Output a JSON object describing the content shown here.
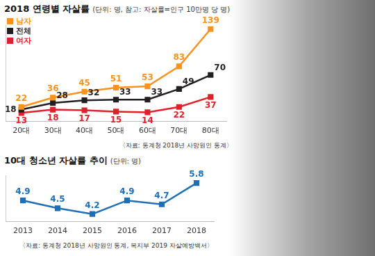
{
  "chart_data": [
    {
      "type": "line",
      "title": "2018 연령별 자살률",
      "subtitle": "(단위: 명, 참고: 자살률=인구 10만명 당 명)",
      "source": "〈자료: 통계청 2018년 사망원인 통계〉",
      "categories": [
        "20대",
        "30대",
        "40대",
        "50대",
        "60대",
        "70대",
        "80대"
      ],
      "series": [
        {
          "name": "남자",
          "color": "#f7931e",
          "values": [
            22,
            36,
            45,
            51,
            53,
            83,
            139
          ]
        },
        {
          "name": "전체",
          "color": "#231f20",
          "values": [
            18,
            28,
            32,
            33,
            33,
            49,
            70
          ]
        },
        {
          "name": "여자",
          "color": "#e0202a",
          "values": [
            13,
            18,
            17,
            15,
            14,
            22,
            37
          ]
        }
      ],
      "ylim": [
        0,
        145
      ],
      "tick_labels": "x",
      "legend": "top-left",
      "data_labels": true,
      "grid": false,
      "marker": "square"
    },
    {
      "type": "line",
      "title": "10대 청소년 자살률 추이",
      "subtitle": "(단위: 명)",
      "source": "〈자료: 통계청 2018년 사망원인 통계, 복지부 2019 자살예방백서〉",
      "categories": [
        "2013",
        "2014",
        "2015",
        "2016",
        "2017",
        "2018"
      ],
      "values": [
        4.9,
        4.5,
        4.2,
        4.9,
        4.7,
        5.8
      ],
      "color": "#1e6fb4",
      "ylim": [
        3.8,
        6.2
      ],
      "tick_labels": "x",
      "data_labels": true,
      "grid": false,
      "marker": "square"
    }
  ]
}
